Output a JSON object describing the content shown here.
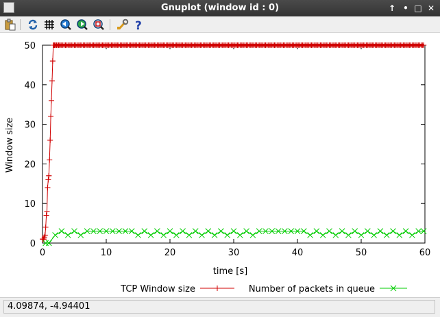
{
  "window": {
    "title": "Gnuplot (window id : 0)",
    "controls": [
      "↑",
      "•",
      "□",
      "✕"
    ]
  },
  "toolbar": {
    "items": [
      {
        "name": "copy-to-clipboard-icon"
      },
      {
        "name": "replot-icon"
      },
      {
        "name": "grid-icon"
      },
      {
        "name": "zoom-previous-icon"
      },
      {
        "name": "zoom-next-icon"
      },
      {
        "name": "unzoom-icon"
      },
      {
        "name": "settings-icon"
      },
      {
        "name": "help-icon"
      }
    ]
  },
  "statusbar": {
    "coordinates": "4.09874, -4.94401"
  },
  "chart_data": {
    "type": "line",
    "title": "",
    "xlabel": "time [s]",
    "ylabel": "Window size",
    "xlim": [
      0,
      60
    ],
    "ylim": [
      0,
      50
    ],
    "xticks": [
      0,
      10,
      20,
      30,
      40,
      50,
      60
    ],
    "yticks": [
      0,
      10,
      20,
      30,
      40,
      50
    ],
    "grid": false,
    "legend_position": "bottom",
    "series": [
      {
        "name": "TCP Window size",
        "color": "#d00000",
        "marker": "+",
        "x": [
          0.0,
          0.1,
          0.2,
          0.3,
          0.4,
          0.5,
          0.6,
          0.7,
          0.8,
          0.9,
          1.0,
          1.1,
          1.2,
          1.3,
          1.4,
          1.5,
          1.6,
          1.7,
          1.8,
          1.9,
          2.0,
          2.5,
          3.0,
          5.0,
          10.0,
          15.0,
          20.0,
          25.0,
          30.0,
          35.0,
          40.0,
          45.0,
          50.0,
          55.0,
          59.8
        ],
        "y": [
          1,
          1,
          1,
          1.5,
          2,
          4,
          7,
          8,
          14,
          16,
          17,
          21,
          26,
          32,
          36,
          41,
          46,
          50,
          50,
          50,
          50,
          50,
          50,
          50,
          50,
          50,
          50,
          50,
          50,
          50,
          50,
          50,
          50,
          50,
          50
        ],
        "marker_step": 0.2
      },
      {
        "name": "Number of packets in queue",
        "color": "#00cc00",
        "marker": "x",
        "x": [
          0.5,
          1.0,
          2.0,
          3.0,
          4.0,
          5.0,
          6.0,
          7.0,
          8.0,
          9.0,
          10.0,
          11.0,
          12.0,
          13.0,
          14.0,
          15.0,
          16.0,
          17.0,
          18.0,
          19.0,
          20.0,
          21.0,
          22.0,
          23.0,
          24.0,
          25.0,
          26.0,
          27.0,
          28.0,
          29.0,
          30.0,
          31.0,
          32.0,
          33.0,
          34.0,
          35.0,
          36.0,
          37.0,
          38.0,
          39.0,
          40.0,
          41.0,
          42.0,
          43.0,
          44.0,
          45.0,
          46.0,
          47.0,
          48.0,
          49.0,
          50.0,
          51.0,
          52.0,
          53.0,
          54.0,
          55.0,
          56.0,
          57.0,
          58.0,
          59.0,
          59.8
        ],
        "y": [
          0,
          0,
          2,
          3,
          2,
          3,
          2,
          3,
          3,
          3,
          3,
          3,
          3,
          3,
          3,
          2,
          3,
          2,
          3,
          2,
          3,
          2,
          3,
          2,
          3,
          2,
          3,
          2,
          3,
          2,
          3,
          2,
          3,
          2,
          3,
          3,
          3,
          3,
          3,
          3,
          3,
          3,
          2,
          3,
          2,
          3,
          2,
          3,
          2,
          3,
          2,
          3,
          2,
          3,
          2,
          3,
          2,
          3,
          2,
          3,
          3
        ]
      }
    ]
  }
}
